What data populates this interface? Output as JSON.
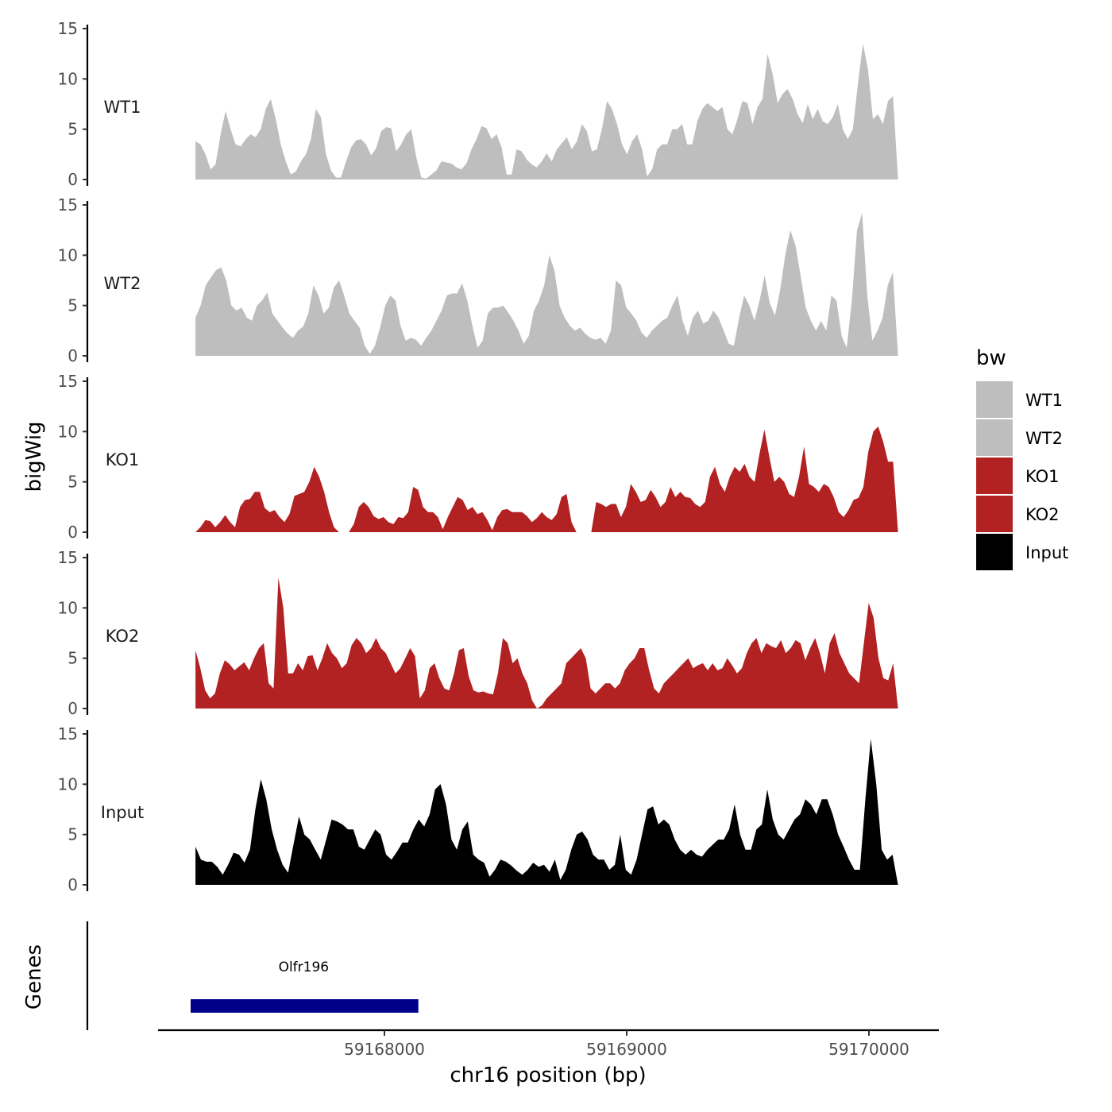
{
  "chart_data": {
    "type": "area",
    "ylabel": "bigWig",
    "xlabel": "chr16 position (bp)",
    "ylim": [
      0,
      15
    ],
    "yticks": [
      0,
      5,
      10,
      15
    ],
    "xlim": [
      59167080,
      59170300
    ],
    "xticks": [
      59168000,
      59169000,
      59170000
    ],
    "region": [
      59167220,
      59170120
    ],
    "genes_label": "Genes",
    "genes": [
      {
        "name": "Olfr196",
        "start": 59167200,
        "end": 59168140,
        "color": "#00008b"
      }
    ],
    "legend": {
      "title": "bw",
      "entries": [
        {
          "label": "WT1",
          "color": "#bebebe"
        },
        {
          "label": "WT2",
          "color": "#bebebe"
        },
        {
          "label": "KO1",
          "color": "#b22222"
        },
        {
          "label": "KO2",
          "color": "#b22222"
        },
        {
          "label": "Input",
          "color": "#000000"
        }
      ]
    },
    "series": [
      {
        "name": "WT1",
        "color": "#bebebe",
        "values": [
          3.8,
          3.5,
          2.5,
          1.0,
          1.5,
          4.5,
          6.8,
          5.0,
          3.5,
          3.3,
          4.0,
          4.5,
          4.2,
          5.0,
          7.0,
          8.0,
          6.0,
          3.5,
          1.8,
          0.5,
          0.8,
          1.8,
          2.5,
          4.0,
          7.0,
          6.2,
          2.5,
          0.9,
          0.2,
          0.2,
          1.8,
          3.2,
          3.9,
          4.0,
          3.5,
          2.4,
          3.1,
          4.8,
          5.2,
          5.1,
          2.8,
          3.5,
          4.5,
          5.0,
          2.2,
          0.2,
          0.1,
          0.5,
          0.9,
          1.8,
          1.7,
          1.6,
          1.2,
          1.0,
          1.6,
          3.0,
          4.0,
          5.3,
          5.1,
          4.0,
          4.5,
          3.2,
          0.5,
          0.5,
          3.0,
          2.8,
          2.0,
          1.5,
          1.2,
          1.8,
          2.6,
          1.8,
          3.0,
          3.6,
          4.2,
          3.0,
          3.8,
          5.5,
          4.8,
          2.8,
          3.0,
          5.0,
          7.8,
          7.0,
          5.5,
          3.5,
          2.5,
          3.8,
          4.5,
          3.0,
          0.3,
          1.0,
          3.0,
          3.5,
          3.5,
          5.0,
          5.0,
          5.5,
          3.5,
          3.5,
          5.8,
          7.0,
          7.6,
          7.2,
          6.8,
          7.2,
          5.0,
          4.5,
          6.0,
          7.8,
          7.6,
          5.5,
          7.2,
          8.0,
          12.5,
          10.5,
          7.6,
          8.5,
          9.0,
          8.0,
          6.5,
          5.6,
          7.5,
          6.0,
          7.0,
          5.8,
          5.5,
          6.2,
          7.5,
          5.0,
          4.0,
          5.0,
          9.5,
          13.5,
          11.0,
          6.0,
          6.5,
          5.5,
          7.8,
          8.3,
          0.0
        ]
      },
      {
        "name": "WT2",
        "color": "#bebebe",
        "values": [
          3.8,
          5.0,
          7.0,
          7.8,
          8.5,
          8.8,
          7.5,
          5.0,
          4.5,
          4.8,
          3.8,
          3.5,
          5.0,
          5.5,
          6.3,
          4.2,
          3.5,
          2.8,
          2.2,
          1.8,
          2.5,
          2.9,
          4.2,
          7.0,
          6.0,
          4.2,
          4.8,
          6.8,
          7.5,
          6.0,
          4.2,
          3.5,
          2.8,
          1.0,
          0.2,
          1.0,
          2.8,
          5.0,
          6.0,
          5.5,
          3.0,
          1.5,
          1.8,
          1.6,
          1.0,
          1.8,
          2.5,
          3.5,
          4.5,
          6.0,
          6.2,
          6.2,
          7.2,
          5.5,
          3.0,
          0.8,
          1.5,
          4.2,
          4.8,
          4.8,
          5.0,
          4.3,
          3.5,
          2.5,
          1.2,
          2.0,
          4.5,
          5.5,
          7.0,
          10.0,
          8.5,
          5.0,
          3.8,
          3.0,
          2.5,
          2.8,
          2.2,
          1.8,
          1.6,
          1.8,
          1.2,
          2.5,
          7.5,
          7.0,
          4.8,
          4.2,
          3.5,
          2.3,
          1.8,
          2.5,
          3.0,
          3.5,
          3.8,
          5.0,
          6.0,
          3.5,
          2.0,
          3.8,
          4.5,
          3.2,
          3.5,
          4.5,
          3.8,
          2.5,
          1.2,
          1.0,
          3.8,
          6.0,
          5.0,
          3.5,
          5.5,
          8.0,
          5.2,
          4.0,
          6.5,
          10.0,
          12.5,
          11.0,
          8.0,
          4.8,
          3.5,
          2.5,
          3.5,
          2.5,
          6.0,
          5.5,
          2.0,
          0.8,
          5.5,
          12.5,
          14.2,
          6.0,
          1.5,
          2.5,
          3.8,
          7.0,
          8.3,
          0.0
        ]
      },
      {
        "name": "KO1",
        "color": "#b22222",
        "values": [
          0.0,
          0.5,
          1.2,
          1.1,
          0.5,
          1.0,
          1.7,
          1.0,
          0.5,
          2.5,
          3.2,
          3.3,
          4.0,
          4.0,
          2.4,
          2.0,
          2.2,
          1.5,
          1.0,
          1.8,
          3.6,
          3.8,
          4.0,
          5.0,
          6.5,
          5.5,
          4.0,
          2.0,
          0.5,
          0.0,
          0.0,
          0.0,
          0.8,
          2.5,
          3.0,
          2.5,
          1.6,
          1.3,
          1.5,
          1.0,
          0.8,
          1.5,
          1.4,
          2.0,
          4.5,
          4.2,
          2.5,
          2.0,
          2.0,
          1.5,
          0.3,
          1.5,
          2.5,
          3.5,
          3.2,
          2.2,
          2.5,
          1.8,
          2.0,
          1.2,
          0.2,
          1.5,
          2.2,
          2.3,
          2.0,
          2.0,
          2.0,
          1.6,
          1.0,
          1.4,
          2.0,
          1.5,
          1.2,
          1.8,
          3.5,
          3.8,
          1.0,
          0.0,
          0.0,
          0.0,
          0.0,
          3.0,
          2.8,
          2.5,
          2.8,
          2.8,
          1.5,
          2.5,
          4.8,
          4.0,
          3.0,
          3.2,
          4.2,
          3.5,
          2.5,
          3.0,
          4.5,
          3.5,
          4.0,
          3.5,
          3.4,
          2.8,
          2.5,
          3.0,
          5.5,
          6.5,
          4.8,
          4.0,
          5.5,
          6.5,
          6.0,
          6.8,
          5.5,
          5.0,
          7.8,
          10.2,
          7.5,
          5.0,
          5.5,
          5.0,
          3.8,
          3.5,
          5.5,
          8.5,
          4.8,
          4.5,
          4.0,
          4.8,
          4.5,
          3.5,
          2.0,
          1.5,
          2.2,
          3.2,
          3.4,
          4.5,
          8.0,
          10.0,
          10.5,
          9.0,
          7.0,
          7.0,
          0.0
        ]
      },
      {
        "name": "KO2",
        "color": "#b22222",
        "values": [
          5.8,
          4.0,
          1.8,
          1.0,
          1.5,
          3.5,
          4.8,
          4.4,
          3.8,
          4.2,
          4.6,
          3.8,
          5.0,
          6.0,
          6.5,
          2.5,
          2.0,
          13.0,
          10.0,
          3.5,
          3.5,
          4.5,
          3.8,
          5.2,
          5.3,
          3.8,
          5.0,
          6.5,
          5.5,
          5.0,
          4.0,
          4.5,
          6.3,
          7.0,
          6.5,
          5.5,
          6.0,
          7.0,
          6.0,
          5.5,
          4.5,
          3.5,
          4.0,
          5.0,
          6.0,
          5.2,
          1.0,
          1.8,
          4.0,
          4.5,
          3.0,
          2.0,
          1.8,
          3.5,
          5.8,
          6.0,
          3.2,
          1.8,
          1.6,
          1.7,
          1.5,
          1.4,
          3.5,
          7.0,
          6.5,
          4.5,
          5.0,
          3.5,
          2.5,
          0.8,
          0.0,
          0.3,
          1.0,
          1.5,
          2.0,
          2.5,
          4.5,
          5.0,
          5.5,
          6.0,
          5.0,
          2.0,
          1.5,
          2.0,
          2.5,
          2.5,
          2.0,
          2.5,
          3.8,
          4.5,
          5.0,
          6.0,
          6.0,
          3.8,
          2.0,
          1.5,
          2.5,
          3.0,
          3.5,
          4.0,
          4.5,
          5.0,
          4.0,
          4.3,
          4.5,
          3.8,
          4.5,
          3.8,
          4.0,
          5.0,
          4.3,
          3.5,
          4.0,
          5.5,
          6.5,
          7.0,
          5.5,
          6.5,
          6.2,
          6.0,
          6.8,
          5.5,
          6.0,
          6.8,
          6.5,
          4.8,
          6.0,
          7.0,
          5.5,
          3.5,
          6.5,
          7.5,
          5.5,
          4.5,
          3.5,
          3.0,
          2.5,
          6.5,
          10.5,
          9.0,
          5.0,
          3.0,
          2.8,
          4.5,
          0.0
        ]
      },
      {
        "name": "Input",
        "color": "#000000",
        "values": [
          3.8,
          2.5,
          2.3,
          2.3,
          1.8,
          1.0,
          2.0,
          3.2,
          3.0,
          2.2,
          3.5,
          7.5,
          10.5,
          8.5,
          5.5,
          3.5,
          2.0,
          1.2,
          4.0,
          6.8,
          5.0,
          4.5,
          3.5,
          2.5,
          4.5,
          6.5,
          6.3,
          6.0,
          5.5,
          5.5,
          3.8,
          3.5,
          4.5,
          5.5,
          5.0,
          3.0,
          2.5,
          3.3,
          4.2,
          4.2,
          5.5,
          6.5,
          5.8,
          7.0,
          9.5,
          10.0,
          8.0,
          4.5,
          3.5,
          5.5,
          6.3,
          3.0,
          2.5,
          2.2,
          0.8,
          1.5,
          2.5,
          2.3,
          1.9,
          1.4,
          1.0,
          1.5,
          2.2,
          1.8,
          2.0,
          1.3,
          2.5,
          0.5,
          1.5,
          3.5,
          5.0,
          5.3,
          4.5,
          3.0,
          2.5,
          2.5,
          1.5,
          2.0,
          5.0,
          1.5,
          1.0,
          2.5,
          5.0,
          7.5,
          7.8,
          6.0,
          6.5,
          6.0,
          4.5,
          3.5,
          3.0,
          3.5,
          3.0,
          2.8,
          3.5,
          4.0,
          4.5,
          4.5,
          5.5,
          8.0,
          5.0,
          3.5,
          3.5,
          5.5,
          6.0,
          9.5,
          6.5,
          5.0,
          4.5,
          5.5,
          6.5,
          7.0,
          8.5,
          8.0,
          7.0,
          8.5,
          8.5,
          7.0,
          5.0,
          3.8,
          2.5,
          1.5,
          1.5,
          8.5,
          14.5,
          10.0,
          3.5,
          2.5,
          3.0,
          0.0
        ]
      }
    ]
  }
}
